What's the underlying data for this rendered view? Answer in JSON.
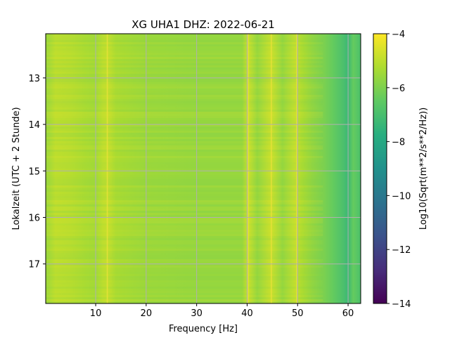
{
  "chart_data": {
    "type": "heatmap",
    "title": "XG UHA1  DHZ: 2022-06-21",
    "xlabel": "Frequency [Hz]",
    "ylabel": "Lokalzeit (UTC + 2 Stunde)",
    "xlim": [
      0.1,
      62.5
    ],
    "ylim": [
      12.05,
      17.85
    ],
    "y_inverted": true,
    "xticks": [
      10,
      20,
      30,
      40,
      50,
      60
    ],
    "yticks": [
      13,
      14,
      15,
      16,
      17
    ],
    "grid": true,
    "colormap": "viridis",
    "colorbar": {
      "label": "Log10(Sqrt(m**2/s**2/Hz))",
      "range": [
        -14,
        -4
      ],
      "ticks": [
        -4,
        -6,
        -8,
        -10,
        -12,
        -14
      ]
    },
    "value_profile": {
      "frequencies": [
        0.1,
        2,
        5,
        8,
        10,
        11.5,
        12.5,
        14,
        20,
        30,
        39,
        40.2,
        42,
        44.8,
        47,
        49.5,
        51,
        53,
        55,
        57,
        59,
        60,
        61,
        62.5
      ],
      "levels": [
        -5.5,
        -5.0,
        -5.1,
        -5.3,
        -5.4,
        -5.0,
        -4.9,
        -5.3,
        -5.5,
        -5.6,
        -5.6,
        -4.8,
        -5.6,
        -4.8,
        -5.6,
        -4.9,
        -5.3,
        -5.7,
        -6.0,
        -6.4,
        -6.9,
        -7.3,
        -6.4,
        -6.9
      ]
    },
    "narrow_lines_hz": [
      40.2,
      44.8,
      49.8,
      12.3
    ]
  }
}
